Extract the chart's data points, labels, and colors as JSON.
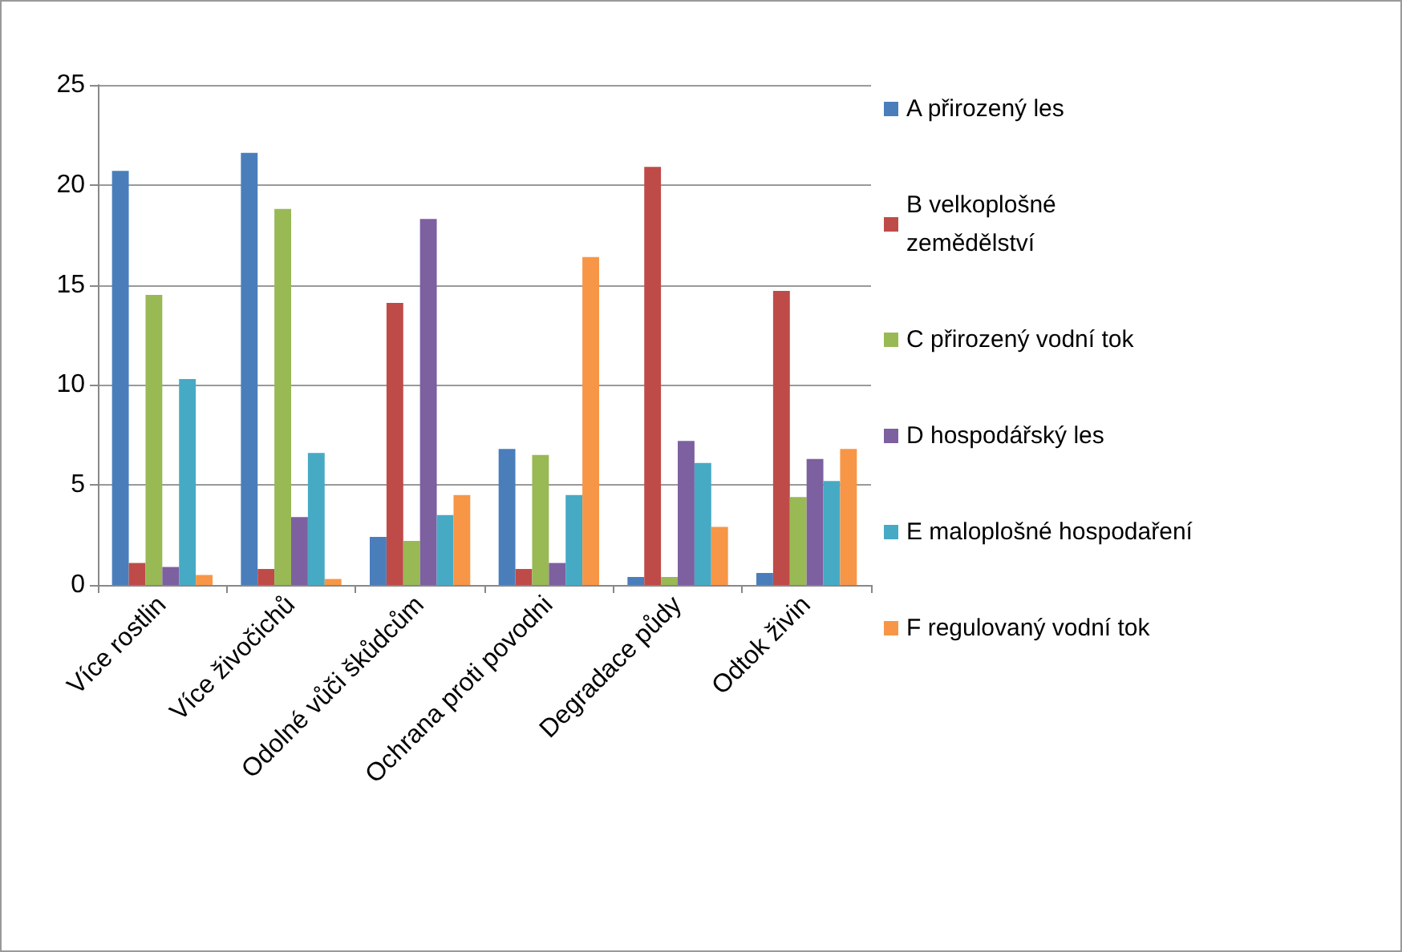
{
  "chart_data": {
    "type": "bar",
    "categories": [
      "Více rostlin",
      "Více živočichů",
      "Odolné vůči škůdcům",
      "Ochrana proti povodni",
      "Degradace půdy",
      "Odtok živin"
    ],
    "series": [
      {
        "name": "A přirozený les",
        "color": "#4a7ebb",
        "values": [
          20.7,
          21.6,
          2.4,
          6.8,
          0.4,
          0.6
        ]
      },
      {
        "name": "B velkoplošné zemědělství",
        "color": "#be4b48",
        "values": [
          1.1,
          0.8,
          14.1,
          0.8,
          20.9,
          14.7
        ]
      },
      {
        "name": "C přirozený vodní tok",
        "color": "#98b954",
        "values": [
          14.5,
          18.8,
          2.2,
          6.5,
          0.4,
          4.4
        ]
      },
      {
        "name": "D hospodářský les",
        "color": "#7d60a0",
        "values": [
          0.9,
          3.4,
          18.3,
          1.1,
          7.2,
          6.3
        ]
      },
      {
        "name": "E maloplošné hospodaření",
        "color": "#46aac5",
        "values": [
          10.3,
          6.6,
          3.5,
          4.5,
          6.1,
          5.2
        ]
      },
      {
        "name": "F regulovaný vodní tok",
        "color": "#f79646",
        "values": [
          0.5,
          0.3,
          4.5,
          16.4,
          2.9,
          6.8
        ]
      }
    ],
    "ylim": [
      0,
      25
    ],
    "yticks": [
      0,
      5,
      10,
      15,
      20,
      25
    ],
    "grid": "y",
    "legend": "right"
  }
}
